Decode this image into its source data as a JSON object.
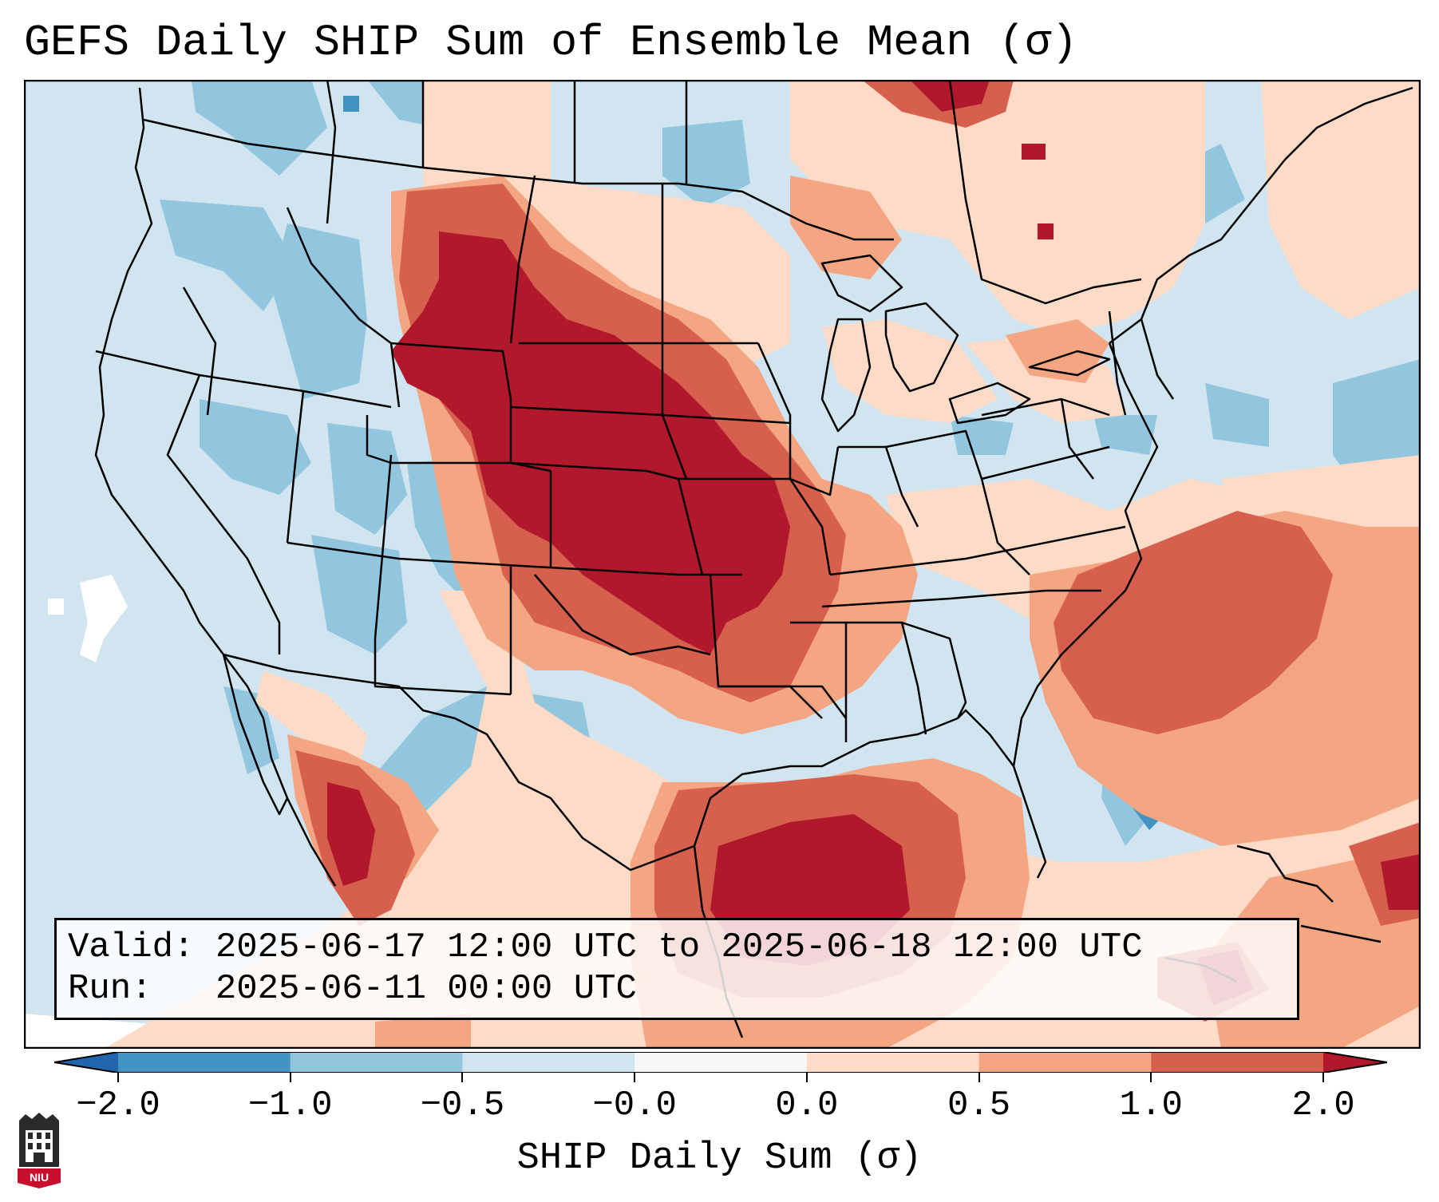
{
  "figure": {
    "title": "GEFS Daily SHIP Sum of Ensemble Mean (σ)",
    "info_valid": "Valid: 2025-06-17 12:00 UTC to 2025-06-18 12:00 UTC",
    "info_run": "Run:   2025-06-11 00:00 UTC",
    "colorbar_label": "SHIP Daily Sum (σ)",
    "logo_text": "NIU"
  },
  "colorbar": {
    "ticks": [
      "−2.0",
      "−1.0",
      "−0.5",
      "−0.0",
      "0.0",
      "0.5",
      "1.0",
      "2.0"
    ],
    "bins": [
      {
        "from": -2.0,
        "to": -1.0,
        "color": "#4393c3"
      },
      {
        "from": -1.0,
        "to": -0.5,
        "color": "#92c5de"
      },
      {
        "from": -0.5,
        "to": -0.0,
        "color": "#d1e5f0"
      },
      {
        "from": -0.0,
        "to": 0.0,
        "color": "#f7f7f7"
      },
      {
        "from": 0.0,
        "to": 0.5,
        "color": "#fddbc7"
      },
      {
        "from": 0.5,
        "to": 1.0,
        "color": "#f4a582"
      },
      {
        "from": 1.0,
        "to": 2.0,
        "color": "#d6604d"
      }
    ],
    "under_color": "#2166ac",
    "over_color": "#b2182b"
  },
  "colors": {
    "ocean_bg": "#d1e5f0",
    "strong_neg": "#4393c3",
    "mod_neg": "#92c5de",
    "weak_neg": "#d1e5f0",
    "weak_pos": "#fddbc7",
    "mod_pos": "#f4a582",
    "strong_pos": "#d6604d",
    "extreme_pos": "#b2182b",
    "boundary": "#000000"
  }
}
